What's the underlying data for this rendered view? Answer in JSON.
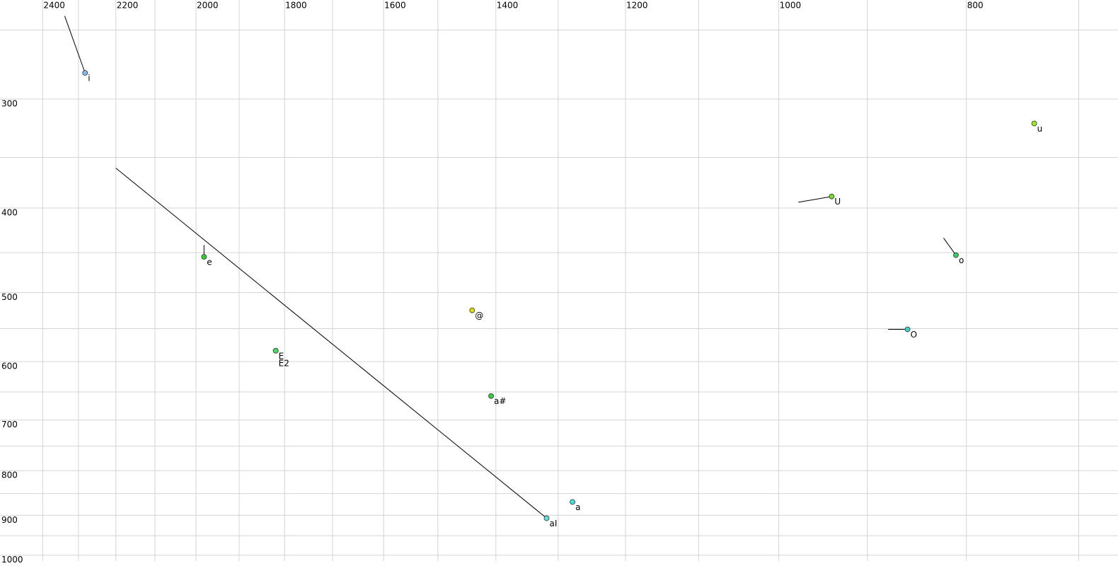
{
  "chart_data": {
    "type": "scatter",
    "log_x": true,
    "log_y": true,
    "x_reversed": true,
    "grid": true,
    "xlim": [
      2525,
      668
    ],
    "ylim": [
      231,
      1029
    ],
    "xticks": [
      2400,
      2200,
      2000,
      1800,
      1600,
      1400,
      1200,
      1000,
      800
    ],
    "xminor": [
      2300,
      2100,
      1900,
      1700,
      1500,
      1300,
      1100,
      900,
      700
    ],
    "yticks": [
      300,
      400,
      500,
      600,
      700,
      800,
      900,
      1000
    ],
    "yminor": [
      250,
      350,
      450,
      550,
      650,
      750,
      850,
      950
    ],
    "points": [
      {
        "label": "i",
        "x": 2282,
        "y": 280,
        "color": "#8ab4f0",
        "onset": {
          "x": 2338,
          "y": 241
        }
      },
      {
        "label": "e",
        "x": 1981,
        "y": 455,
        "color": "#33cc33",
        "onset": {
          "x": 1981,
          "y": 441
        }
      },
      {
        "label": "E",
        "x": 1819,
        "y": 583,
        "color": "#44dd66"
      },
      {
        "label": "E2",
        "x": 1819,
        "y": 583,
        "color": "#44dd66"
      },
      {
        "label": "@",
        "x": 1440,
        "y": 524,
        "color": "#dddd00"
      },
      {
        "label": "a#",
        "x": 1408,
        "y": 657,
        "color": "#33cc44"
      },
      {
        "label": "aI",
        "x": 1318,
        "y": 907,
        "color": "#66dddd",
        "onset": {
          "x": 2200,
          "y": 360
        }
      },
      {
        "label": "a",
        "x": 1278,
        "y": 869,
        "color": "#44dddd"
      },
      {
        "label": "U",
        "x": 939,
        "y": 388,
        "color": "#77dd22",
        "onset": {
          "x": 977,
          "y": 394
        }
      },
      {
        "label": "O",
        "x": 858,
        "y": 551,
        "color": "#44cccc",
        "onset": {
          "x": 878,
          "y": 551
        }
      },
      {
        "label": "o",
        "x": 810,
        "y": 453,
        "color": "#33cc66",
        "onset": {
          "x": 822,
          "y": 433
        }
      },
      {
        "label": "u",
        "x": 738,
        "y": 320,
        "color": "#99ee22"
      }
    ]
  }
}
